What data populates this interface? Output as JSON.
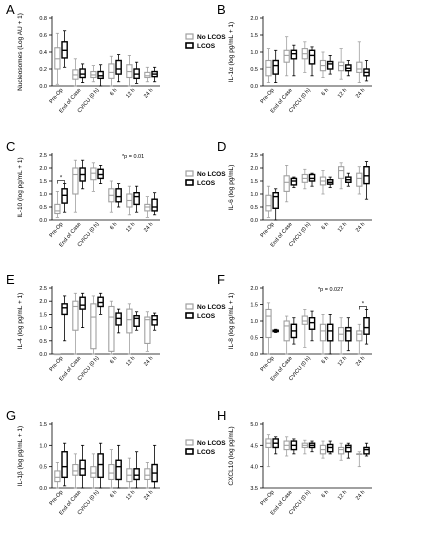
{
  "legend": {
    "no_lcos": "No LCOS",
    "lcos": "LCOS"
  },
  "chart_data": [
    {
      "type": "box",
      "panel_label": "A",
      "ylabel": "Nucleosomes (Log AU + 1)",
      "ylim": [
        0,
        0.8
      ],
      "yticks": [
        0,
        0.2,
        0.4,
        0.6,
        0.8
      ],
      "ytick_labels": [
        "0.0",
        "0.2",
        "0.4",
        "0.6",
        "0.8"
      ],
      "categories": [
        "Pre-Op",
        "End of Case",
        "CVICU (0 h)",
        "6 h",
        "12 h",
        "24 h"
      ],
      "legend": true,
      "annotation": "",
      "series": [
        {
          "name": "No LCOS",
          "boxes": [
            [
              0.02,
              0.2,
              0.32,
              0.45,
              0.62
            ],
            [
              0.0,
              0.08,
              0.13,
              0.19,
              0.32
            ],
            [
              0.05,
              0.1,
              0.13,
              0.17,
              0.24
            ],
            [
              0.0,
              0.09,
              0.16,
              0.26,
              0.35
            ],
            [
              0.0,
              0.1,
              0.17,
              0.25,
              0.36
            ],
            [
              0.05,
              0.1,
              0.12,
              0.16,
              0.22
            ]
          ]
        },
        {
          "name": "LCOS",
          "boxes": [
            [
              0.22,
              0.33,
              0.42,
              0.52,
              0.65
            ],
            [
              0.04,
              0.1,
              0.14,
              0.2,
              0.26
            ],
            [
              0.0,
              0.09,
              0.12,
              0.17,
              0.25
            ],
            [
              0.05,
              0.14,
              0.2,
              0.3,
              0.37
            ],
            [
              0.03,
              0.09,
              0.14,
              0.2,
              0.28
            ],
            [
              0.05,
              0.11,
              0.14,
              0.17,
              0.22
            ]
          ]
        }
      ]
    },
    {
      "type": "box",
      "panel_label": "B",
      "ylabel": "IL-1α (log pg/mL + 1)",
      "ylim": [
        0,
        2.0
      ],
      "yticks": [
        0,
        0.5,
        1.0,
        1.5,
        2.0
      ],
      "ytick_labels": [
        "0.0",
        "0.5",
        "1.0",
        "1.5",
        "2.0"
      ],
      "categories": [
        "Pre-Op",
        "End of Case",
        "CVICU (0 h)",
        "6 h",
        "12 h",
        "24 h"
      ],
      "legend": false,
      "annotation": "",
      "series": [
        {
          "name": "No LCOS",
          "boxes": [
            [
              0.1,
              0.3,
              0.55,
              0.75,
              1.1
            ],
            [
              0.3,
              0.7,
              0.9,
              1.05,
              1.45
            ],
            [
              0.4,
              0.8,
              0.95,
              1.1,
              1.3
            ],
            [
              0.25,
              0.45,
              0.6,
              0.75,
              1.0
            ],
            [
              0.2,
              0.45,
              0.6,
              0.7,
              1.1
            ],
            [
              0.1,
              0.4,
              0.5,
              0.7,
              1.3
            ]
          ]
        },
        {
          "name": "LCOS",
          "boxes": [
            [
              0.1,
              0.35,
              0.6,
              0.75,
              1.05
            ],
            [
              0.3,
              0.8,
              0.95,
              1.05,
              1.2
            ],
            [
              0.3,
              0.65,
              0.9,
              1.05,
              1.15
            ],
            [
              0.35,
              0.5,
              0.65,
              0.72,
              0.9
            ],
            [
              0.3,
              0.45,
              0.52,
              0.62,
              0.75
            ],
            [
              0.15,
              0.3,
              0.4,
              0.5,
              0.75
            ]
          ]
        }
      ]
    },
    {
      "type": "box",
      "panel_label": "C",
      "ylabel": "IL-10 (log pg/mL + 1)",
      "ylim": [
        0,
        2.5
      ],
      "yticks": [
        0,
        0.5,
        1.0,
        1.5,
        2.0,
        2.5
      ],
      "ytick_labels": [
        "0.0",
        "0.5",
        "1.0",
        "1.5",
        "2.0",
        "2.5"
      ],
      "categories": [
        "Pre-Op",
        "End of Case",
        "CVICU (0 h)",
        "6 h",
        "12 h",
        "24 h"
      ],
      "legend": true,
      "annotation": "*p = 0.01",
      "bracket_group": 0,
      "series": [
        {
          "name": "No LCOS",
          "boxes": [
            [
              0.1,
              0.25,
              0.35,
              0.6,
              1.1
            ],
            [
              0.3,
              1.0,
              1.75,
              2.0,
              2.3
            ],
            [
              1.1,
              1.55,
              1.8,
              2.0,
              2.2
            ],
            [
              0.3,
              0.7,
              0.95,
              1.2,
              1.5
            ],
            [
              0.2,
              0.5,
              0.75,
              1.0,
              1.3
            ],
            [
              0.1,
              0.35,
              0.5,
              0.6,
              0.9
            ]
          ]
        },
        {
          "name": "LCOS",
          "boxes": [
            [
              0.3,
              0.65,
              0.95,
              1.2,
              1.4
            ],
            [
              1.2,
              1.5,
              1.75,
              2.0,
              2.3
            ],
            [
              1.4,
              1.6,
              1.75,
              1.95,
              2.1
            ],
            [
              0.5,
              0.7,
              0.9,
              1.2,
              1.4
            ],
            [
              0.3,
              0.6,
              0.9,
              1.05,
              1.3
            ],
            [
              0.2,
              0.35,
              0.5,
              0.8,
              1.05
            ]
          ]
        }
      ]
    },
    {
      "type": "box",
      "panel_label": "D",
      "ylabel": "IL-6 (log pg/mL)",
      "ylim": [
        0,
        2.5
      ],
      "yticks": [
        0,
        0.5,
        1.0,
        1.5,
        2.0,
        2.5
      ],
      "ytick_labels": [
        "0.0",
        "0.5",
        "1.0",
        "1.5",
        "2.0",
        "2.5"
      ],
      "categories": [
        "Pre-Op",
        "End of Case",
        "CVICU (0 h)",
        "6 h",
        "12 h",
        "24 h"
      ],
      "legend": false,
      "annotation": "",
      "series": [
        {
          "name": "No LCOS",
          "boxes": [
            [
              0.1,
              0.35,
              0.55,
              0.95,
              1.3
            ],
            [
              0.7,
              1.1,
              1.45,
              1.7,
              2.1
            ],
            [
              1.2,
              1.45,
              1.6,
              1.75,
              1.95
            ],
            [
              1.0,
              1.35,
              1.5,
              1.65,
              1.9
            ],
            [
              1.2,
              1.6,
              1.9,
              2.05,
              2.2
            ],
            [
              1.0,
              1.3,
              1.6,
              1.8,
              2.05
            ]
          ]
        },
        {
          "name": "LCOS",
          "boxes": [
            [
              0.0,
              0.45,
              0.9,
              1.05,
              1.2
            ],
            [
              1.25,
              1.35,
              1.5,
              1.6,
              1.65
            ],
            [
              1.3,
              1.5,
              1.6,
              1.75,
              1.8
            ],
            [
              1.25,
              1.38,
              1.45,
              1.55,
              1.65
            ],
            [
              1.3,
              1.45,
              1.55,
              1.65,
              1.8
            ],
            [
              0.8,
              1.4,
              1.7,
              2.05,
              2.25
            ]
          ]
        }
      ]
    },
    {
      "type": "box",
      "panel_label": "E",
      "ylabel": "IL-4 (log pg/mL + 1)",
      "ylim": [
        0,
        2.5
      ],
      "yticks": [
        0,
        0.5,
        1.0,
        1.5,
        2.0,
        2.5
      ],
      "ytick_labels": [
        "0.0",
        "0.5",
        "1.0",
        "1.5",
        "2.0",
        "2.5"
      ],
      "categories": [
        "Pre-Op",
        "End of Case",
        "CVICU (0 h)",
        "6 h",
        "12 h",
        "24 h"
      ],
      "legend": true,
      "annotation": "",
      "series": [
        {
          "name": "No LCOS",
          "boxes": [
            [
              0.0,
              0.0,
              0.0,
              0.0,
              0.0
            ],
            [
              0.0,
              0.9,
              1.8,
              2.0,
              2.3
            ],
            [
              0.0,
              0.2,
              1.4,
              1.9,
              2.2
            ],
            [
              0.0,
              0.1,
              1.4,
              1.8,
              2.0
            ],
            [
              0.0,
              0.8,
              1.3,
              1.7,
              1.9
            ],
            [
              0.1,
              0.4,
              1.3,
              1.4,
              1.6
            ]
          ]
        },
        {
          "name": "LCOS",
          "boxes": [
            [
              0.5,
              1.5,
              1.75,
              1.9,
              2.2
            ],
            [
              1.0,
              1.7,
              1.85,
              2.15,
              2.3
            ],
            [
              1.5,
              1.8,
              1.95,
              2.15,
              2.3
            ],
            [
              0.8,
              1.1,
              1.35,
              1.55,
              1.7
            ],
            [
              0.9,
              1.05,
              1.35,
              1.45,
              1.6
            ],
            [
              0.9,
              1.1,
              1.3,
              1.45,
              1.55
            ]
          ]
        }
      ]
    },
    {
      "type": "box",
      "panel_label": "F",
      "ylabel": "IL-8 (log pg/mL + 1)",
      "ylim": [
        0,
        2.0
      ],
      "yticks": [
        0,
        0.5,
        1.0,
        1.5,
        2.0
      ],
      "ytick_labels": [
        "0.0",
        "0.5",
        "1.0",
        "1.5",
        "2.0"
      ],
      "categories": [
        "Pre-Op",
        "End of Case",
        "CVICU (0 h)",
        "6 h",
        "12 h",
        "24 h"
      ],
      "legend": false,
      "annotation": "*p = 0.027",
      "bracket_group": 5,
      "series": [
        {
          "name": "No LCOS",
          "boxes": [
            [
              0.0,
              0.5,
              1.15,
              1.35,
              1.55
            ],
            [
              0.0,
              0.4,
              0.85,
              1.0,
              1.15
            ],
            [
              0.2,
              0.9,
              1.0,
              1.15,
              1.35
            ],
            [
              0.0,
              0.4,
              0.7,
              0.9,
              1.2
            ],
            [
              0.0,
              0.4,
              0.6,
              0.8,
              1.1
            ],
            [
              0.0,
              0.4,
              0.6,
              0.7,
              0.9
            ]
          ]
        },
        {
          "name": "LCOS",
          "boxes": [
            [
              0.65,
              0.68,
              0.7,
              0.72,
              0.75
            ],
            [
              0.3,
              0.5,
              0.7,
              0.9,
              1.1
            ],
            [
              0.4,
              0.75,
              0.95,
              1.1,
              1.3
            ],
            [
              0.0,
              0.4,
              0.7,
              0.9,
              1.2
            ],
            [
              0.1,
              0.4,
              0.7,
              0.8,
              1.1
            ],
            [
              0.3,
              0.6,
              0.8,
              1.1,
              1.35
            ]
          ]
        }
      ]
    },
    {
      "type": "box",
      "panel_label": "G",
      "ylabel": "IL-1β (log pg/mL + 1)",
      "ylim": [
        0,
        1.5
      ],
      "yticks": [
        0,
        0.5,
        1.0,
        1.5
      ],
      "ytick_labels": [
        "0.0",
        "0.5",
        "1.0",
        "1.5"
      ],
      "categories": [
        "Pre-Op",
        "End of Case",
        "CVICU (0 h)",
        "6 h",
        "12 h",
        "24 h"
      ],
      "legend": true,
      "annotation": "",
      "series": [
        {
          "name": "No LCOS",
          "boxes": [
            [
              0.0,
              0.15,
              0.25,
              0.4,
              0.6
            ],
            [
              0.0,
              0.3,
              0.4,
              0.55,
              0.8
            ],
            [
              0.0,
              0.25,
              0.35,
              0.5,
              0.8
            ],
            [
              0.0,
              0.2,
              0.35,
              0.55,
              0.9
            ],
            [
              0.0,
              0.15,
              0.3,
              0.45,
              0.7
            ],
            [
              0.0,
              0.2,
              0.3,
              0.45,
              0.6
            ]
          ]
        },
        {
          "name": "LCOS",
          "boxes": [
            [
              0.05,
              0.25,
              0.5,
              0.85,
              1.05
            ],
            [
              0.0,
              0.3,
              0.45,
              0.65,
              1.0
            ],
            [
              0.0,
              0.25,
              0.55,
              0.8,
              1.05
            ],
            [
              0.0,
              0.2,
              0.5,
              0.65,
              1.0
            ],
            [
              0.0,
              0.2,
              0.3,
              0.45,
              0.85
            ],
            [
              0.0,
              0.15,
              0.35,
              0.55,
              1.0
            ]
          ]
        }
      ]
    },
    {
      "type": "box",
      "panel_label": "H",
      "ylabel": "CXCL10 (log pg/mL)",
      "ylim": [
        3.5,
        5.0
      ],
      "yticks": [
        3.5,
        4.0,
        4.5,
        5.0
      ],
      "ytick_labels": [
        "3.5",
        "4.0",
        "4.5",
        "5.0"
      ],
      "categories": [
        "Pre-Op",
        "End of Case",
        "CVICU (0 h)",
        "6 h",
        "12 h",
        "24 h"
      ],
      "legend": false,
      "annotation": "",
      "series": [
        {
          "name": "No LCOS",
          "boxes": [
            [
              4.0,
              4.45,
              4.55,
              4.65,
              4.75
            ],
            [
              4.25,
              4.4,
              4.5,
              4.6,
              4.7
            ],
            [
              4.3,
              4.45,
              4.5,
              4.55,
              4.62
            ],
            [
              4.2,
              4.3,
              4.4,
              4.5,
              4.6
            ],
            [
              4.15,
              4.3,
              4.4,
              4.45,
              4.55
            ],
            [
              4.0,
              4.3,
              4.3,
              4.3,
              4.35
            ]
          ]
        },
        {
          "name": "LCOS",
          "boxes": [
            [
              4.3,
              4.45,
              4.55,
              4.65,
              4.7
            ],
            [
              4.3,
              4.4,
              4.5,
              4.6,
              4.65
            ],
            [
              4.35,
              4.45,
              4.5,
              4.55,
              4.6
            ],
            [
              4.3,
              4.35,
              4.45,
              4.52,
              4.6
            ],
            [
              4.2,
              4.35,
              4.45,
              4.5,
              4.55
            ],
            [
              4.25,
              4.3,
              4.4,
              4.45,
              4.55
            ]
          ]
        }
      ]
    }
  ]
}
